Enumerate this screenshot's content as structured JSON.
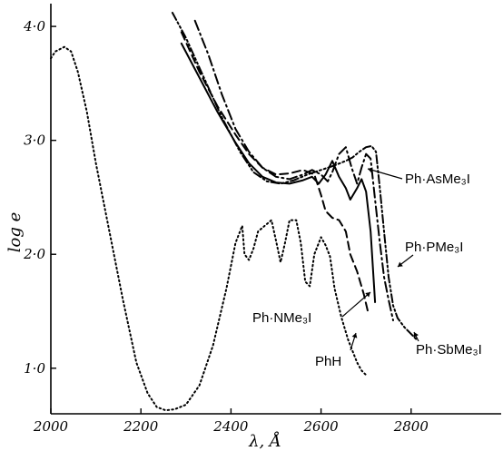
{
  "chart_data": {
    "type": "line",
    "title": "",
    "xlabel": "λ, Å",
    "ylabel": "log e",
    "xlim": [
      2000,
      3000
    ],
    "ylim": [
      0.6,
      4.2
    ],
    "x_ticks": [
      2000,
      2200,
      2400,
      2600,
      2800
    ],
    "x_tick_labels": [
      "2000",
      "2200",
      "2400",
      "2600",
      "2800"
    ],
    "y_ticks": [
      1.0,
      2.0,
      3.0,
      4.0
    ],
    "y_tick_labels": [
      "1·0",
      "2·0",
      "3·0",
      "4·0"
    ],
    "grid": false,
    "legend": "none",
    "annotations": [
      {
        "text": "Ph·AsMe₃I",
        "series": "Ph·AsMe3I"
      },
      {
        "text": "Ph·PMe₃I",
        "series": "Ph·PMe3I"
      },
      {
        "text": "Ph·NMe₃I",
        "series": "Ph·NMe3I"
      },
      {
        "text": "PhH",
        "series": "PhH"
      },
      {
        "text": "Ph·SbMe₃I",
        "series": "Ph·SbMe3I"
      }
    ],
    "series": [
      {
        "name": "PhH",
        "style": "dotted",
        "x": [
          2000,
          2010,
          2030,
          2045,
          2060,
          2080,
          2100,
          2130,
          2160,
          2190,
          2215,
          2235,
          2255,
          2275,
          2300,
          2330,
          2360,
          2390,
          2410,
          2425,
          2430,
          2440,
          2450,
          2460,
          2475,
          2490,
          2500,
          2510,
          2520,
          2530,
          2545,
          2555,
          2565,
          2575,
          2585,
          2600,
          2610,
          2620,
          2630,
          2645,
          2660,
          2670,
          2680,
          2690,
          2700
        ],
        "y": [
          3.72,
          3.78,
          3.82,
          3.78,
          3.6,
          3.25,
          2.8,
          2.2,
          1.6,
          1.05,
          0.78,
          0.66,
          0.63,
          0.64,
          0.68,
          0.85,
          1.2,
          1.7,
          2.1,
          2.25,
          2.0,
          1.95,
          2.05,
          2.2,
          2.25,
          2.3,
          2.12,
          1.93,
          2.1,
          2.3,
          2.3,
          2.1,
          1.76,
          1.72,
          2.0,
          2.15,
          2.08,
          1.98,
          1.7,
          1.45,
          1.25,
          1.15,
          1.05,
          0.98,
          0.94
        ]
      },
      {
        "name": "Ph·NMe3I",
        "style": "dashed",
        "x": [
          2290,
          2330,
          2370,
          2410,
          2440,
          2470,
          2500,
          2530,
          2560,
          2585,
          2600,
          2610,
          2625,
          2640,
          2655,
          2665,
          2680,
          2695,
          2705
        ],
        "y": [
          3.95,
          3.6,
          3.3,
          3.05,
          2.88,
          2.76,
          2.7,
          2.71,
          2.74,
          2.7,
          2.52,
          2.38,
          2.32,
          2.3,
          2.2,
          2.0,
          1.85,
          1.65,
          1.48
        ]
      },
      {
        "name": "Ph·AsMe3I",
        "style": "solid",
        "x": [
          2290,
          2330,
          2370,
          2410,
          2440,
          2470,
          2500,
          2530,
          2560,
          2580,
          2595,
          2610,
          2625,
          2640,
          2655,
          2665,
          2680,
          2690,
          2700,
          2710,
          2720
        ],
        "y": [
          3.85,
          3.55,
          3.25,
          2.98,
          2.8,
          2.68,
          2.63,
          2.62,
          2.65,
          2.68,
          2.62,
          2.7,
          2.82,
          2.68,
          2.58,
          2.48,
          2.58,
          2.66,
          2.55,
          2.2,
          1.58
        ]
      },
      {
        "name": "Ph·PMe3I",
        "style": "dash-dot",
        "x": [
          2320,
          2350,
          2380,
          2410,
          2440,
          2470,
          2500,
          2530,
          2560,
          2580,
          2600,
          2615,
          2625,
          2640,
          2655,
          2668,
          2680,
          2690,
          2700,
          2710,
          2720,
          2730,
          2740,
          2750,
          2760
        ],
        "y": [
          4.05,
          3.75,
          3.4,
          3.1,
          2.9,
          2.76,
          2.68,
          2.66,
          2.7,
          2.74,
          2.7,
          2.64,
          2.72,
          2.88,
          2.94,
          2.76,
          2.62,
          2.76,
          2.88,
          2.84,
          2.48,
          2.12,
          1.8,
          1.6,
          1.42
        ]
      },
      {
        "name": "Ph·SbMe3I",
        "style": "dash-dot-dot",
        "x": [
          2270,
          2300,
          2340,
          2380,
          2420,
          2450,
          2480,
          2510,
          2540,
          2570,
          2600,
          2630,
          2655,
          2670,
          2685,
          2700,
          2712,
          2722,
          2730,
          2740,
          2750,
          2760,
          2770,
          2785,
          2800,
          2815
        ],
        "y": [
          4.12,
          3.9,
          3.55,
          3.2,
          2.9,
          2.72,
          2.64,
          2.62,
          2.65,
          2.7,
          2.74,
          2.78,
          2.82,
          2.85,
          2.9,
          2.94,
          2.95,
          2.9,
          2.6,
          2.2,
          1.8,
          1.55,
          1.44,
          1.36,
          1.3,
          1.24
        ]
      }
    ]
  }
}
